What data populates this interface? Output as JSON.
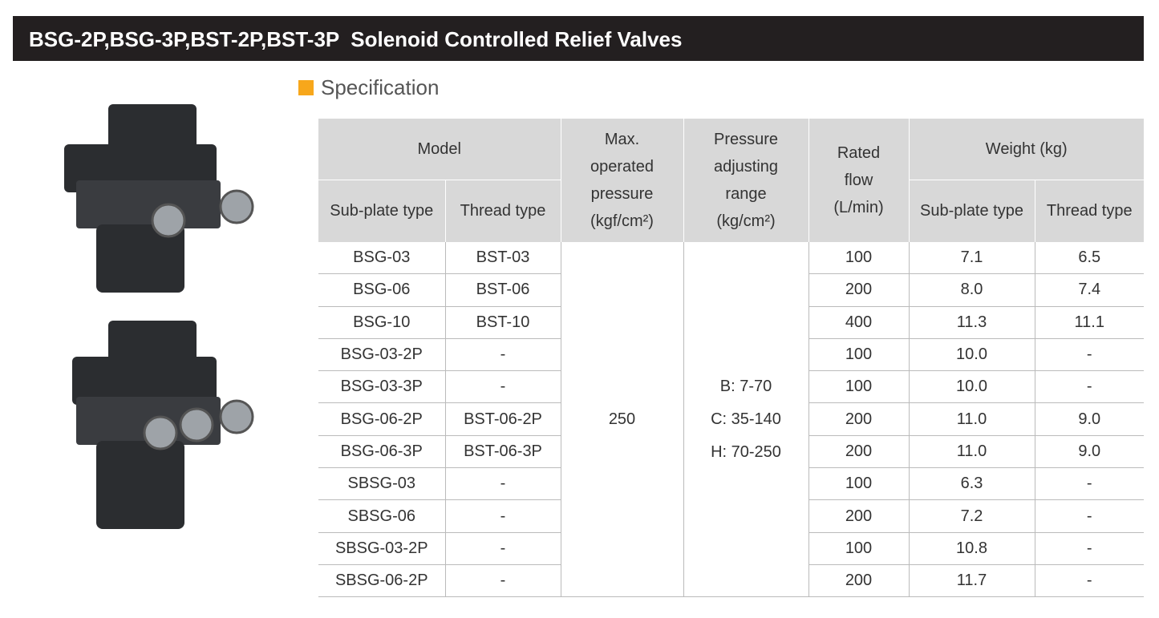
{
  "header": {
    "title": "BSG-2P,BSG-3P,BST-2P,BST-3P  Solenoid Controlled Relief Valves",
    "section": "Specification"
  },
  "table": {
    "columns": {
      "model": "Model",
      "sub_plate": "Sub-plate type",
      "thread": "Thread type",
      "max_pressure": [
        "Max.",
        "operated",
        "pressure",
        "(kgf/cm²)"
      ],
      "pressure_range": [
        "Pressure",
        "adjusting",
        "range",
        "(kg/cm²)"
      ],
      "flow": [
        "Rated",
        "flow",
        "(L/min)"
      ],
      "weight": "Weight (kg)",
      "weight_sub_plate": "Sub-plate type",
      "weight_thread": "Thread type"
    },
    "max_pressure": "250",
    "pressure_range": [
      "B: 7-70",
      "C: 35-140",
      "H: 70-250"
    ],
    "rows": [
      [
        "BSG-03",
        "BST-03",
        "100",
        "7.1",
        "6.5"
      ],
      [
        "BSG-06",
        "BST-06",
        "200",
        "8.0",
        "7.4"
      ],
      [
        "BSG-10",
        "BST-10",
        "400",
        "11.3",
        "11.1"
      ],
      [
        "BSG-03-2P",
        "-",
        "100",
        "10.0",
        "-"
      ],
      [
        "BSG-03-3P",
        "-",
        "100",
        "10.0",
        "-"
      ],
      [
        "BSG-06-2P",
        "BST-06-2P",
        "200",
        "11.0",
        "9.0"
      ],
      [
        "BSG-06-3P",
        "BST-06-3P",
        "200",
        "11.0",
        "9.0"
      ],
      [
        "SBSG-03",
        "-",
        "100",
        "6.3",
        "-"
      ],
      [
        "SBSG-06",
        "-",
        "200",
        "7.2",
        "-"
      ],
      [
        "SBSG-03-2P",
        "-",
        "100",
        "10.8",
        "-"
      ],
      [
        "SBSG-06-2P",
        "-",
        "200",
        "11.7",
        "-"
      ]
    ]
  }
}
